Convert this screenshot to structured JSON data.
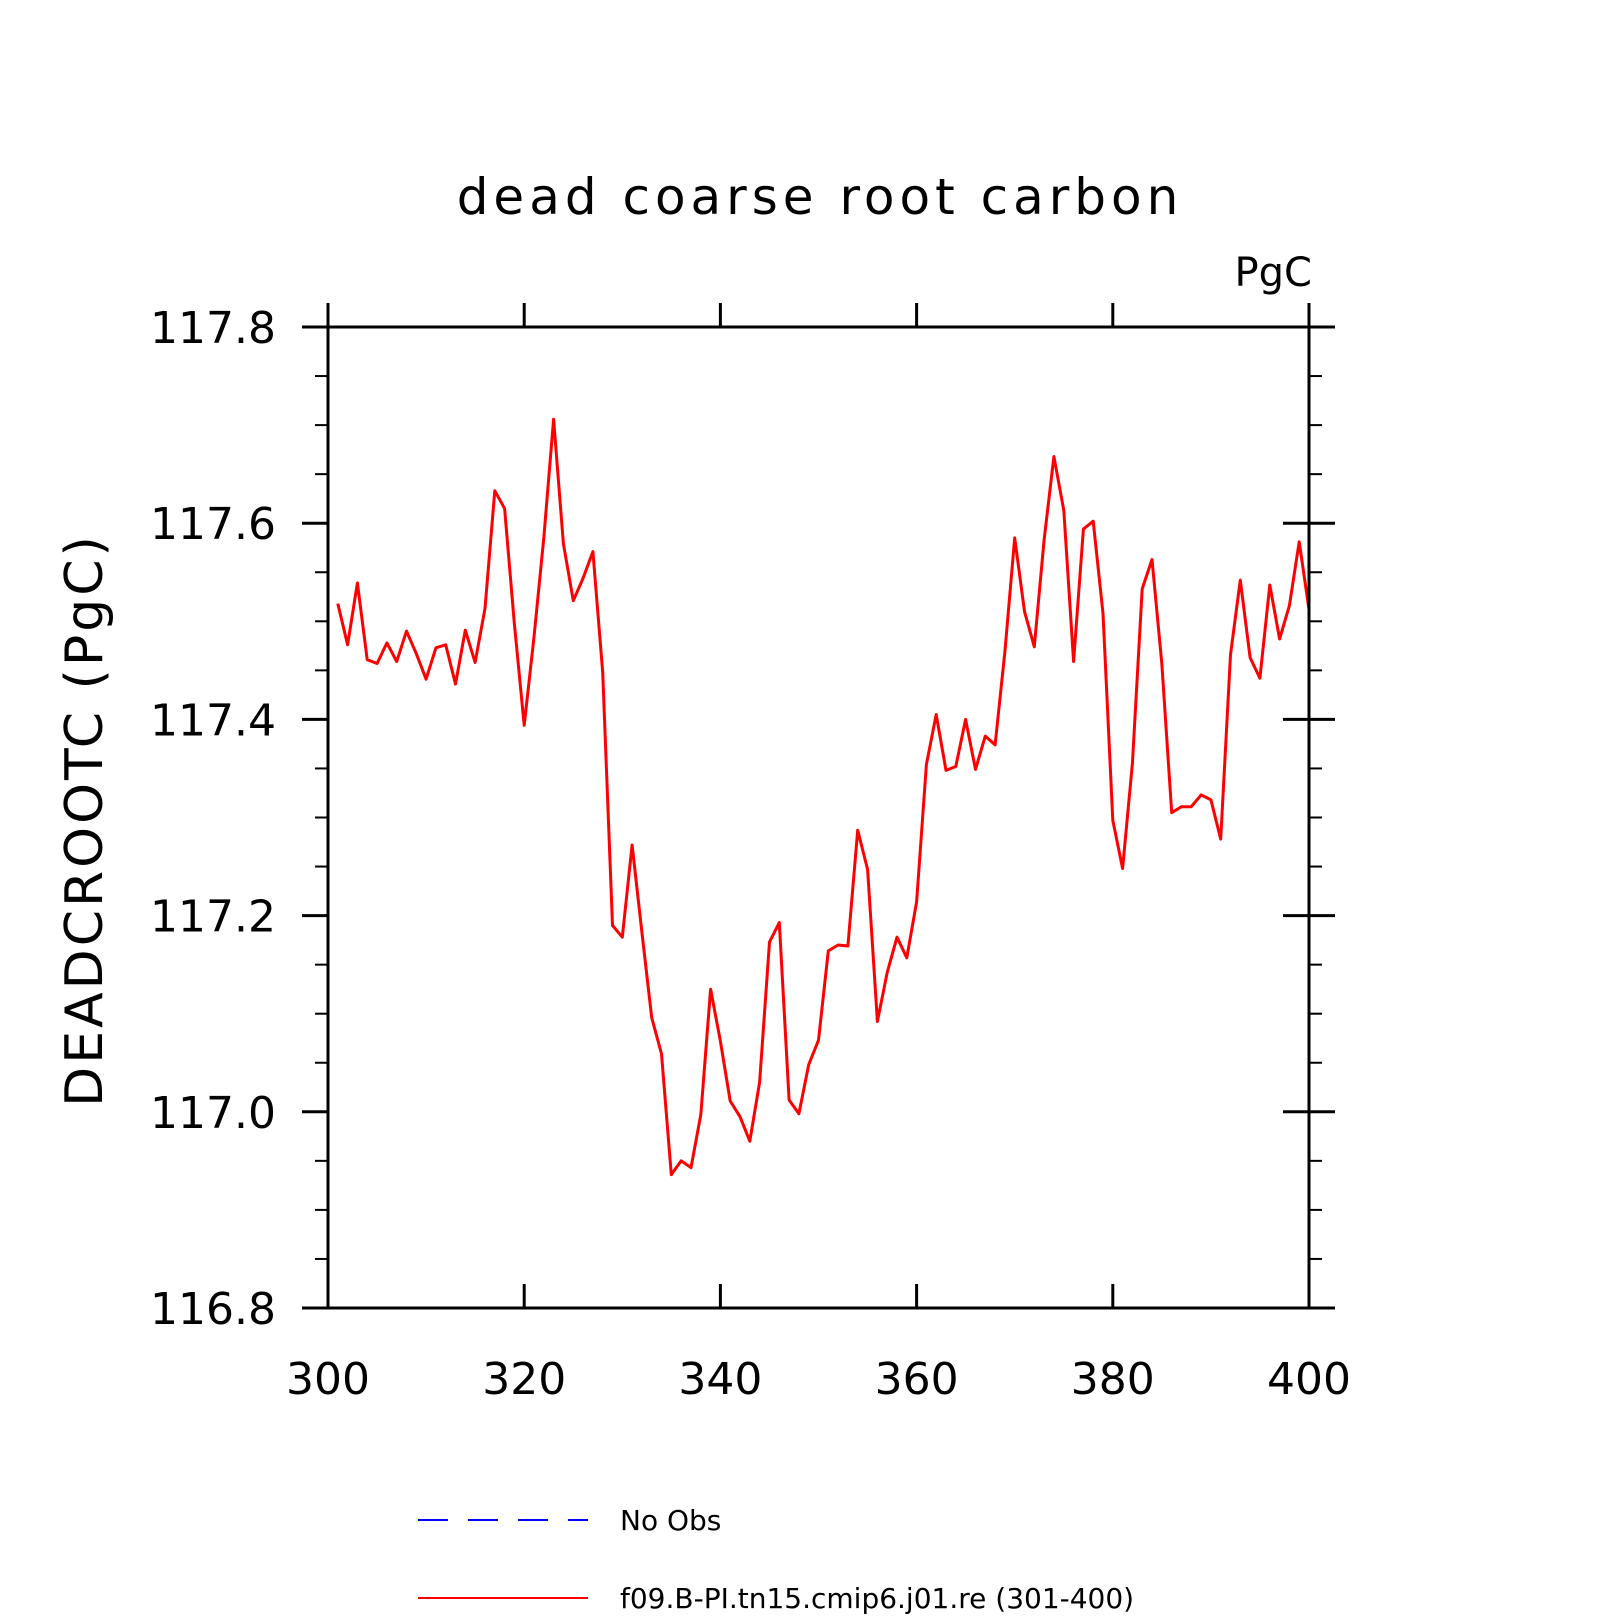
{
  "chart_data": {
    "type": "line",
    "title": "dead coarse root carbon",
    "units": "PgC",
    "xlabel": "",
    "ylabel": "DEADCROOTC  (PgC)",
    "xlim": [
      300,
      400
    ],
    "ylim": [
      116.8,
      117.8
    ],
    "x_ticks": [
      300,
      320,
      340,
      360,
      380,
      400
    ],
    "x_tick_labels": [
      "300",
      "320",
      "340",
      "360",
      "380",
      "400"
    ],
    "y_ticks": [
      116.8,
      117.0,
      117.2,
      117.4,
      117.6,
      117.8
    ],
    "y_tick_labels": [
      "116.8",
      "117.0",
      "117.2",
      "117.4",
      "117.6",
      "117.8"
    ],
    "grid": false,
    "legend_position": "bottom",
    "legend": [
      {
        "label": "No Obs",
        "color": "#0000ff",
        "style": "dashed"
      },
      {
        "label": "f09.B-PI.tn15.cmip6.j01.re (301-400)",
        "color": "#ff0000",
        "style": "solid"
      }
    ],
    "series": [
      {
        "name": "f09.B-PI.tn15.cmip6.j01.re (301-400)",
        "color": "#ff0000",
        "x": [
          301,
          302,
          303,
          304,
          305,
          306,
          307,
          308,
          309,
          310,
          311,
          312,
          313,
          314,
          315,
          316,
          317,
          318,
          319,
          320,
          321,
          322,
          323,
          324,
          325,
          326,
          327,
          328,
          329,
          330,
          331,
          332,
          333,
          334,
          335,
          336,
          337,
          338,
          339,
          340,
          341,
          342,
          343,
          344,
          345,
          346,
          347,
          348,
          349,
          350,
          351,
          352,
          353,
          354,
          355,
          356,
          357,
          358,
          359,
          360,
          361,
          362,
          363,
          364,
          365,
          366,
          367,
          368,
          369,
          370,
          371,
          372,
          373,
          374,
          375,
          376,
          377,
          378,
          379,
          380,
          381,
          382,
          383,
          384,
          385,
          386,
          387,
          388,
          389,
          390,
          391,
          392,
          393,
          394,
          395,
          396,
          397,
          398,
          399,
          400
        ],
        "values": [
          117.518,
          117.476,
          117.539,
          117.461,
          117.457,
          117.478,
          117.459,
          117.49,
          117.467,
          117.441,
          117.473,
          117.476,
          117.436,
          117.491,
          117.458,
          117.513,
          117.633,
          117.615,
          117.497,
          117.394,
          117.484,
          117.585,
          117.706,
          117.579,
          117.521,
          117.544,
          117.571,
          117.448,
          117.19,
          117.178,
          117.272,
          117.183,
          117.096,
          117.059,
          116.936,
          116.95,
          116.943,
          116.997,
          117.125,
          117.072,
          117.011,
          116.995,
          116.97,
          117.03,
          117.173,
          117.193,
          117.012,
          116.998,
          117.048,
          117.073,
          117.164,
          117.17,
          117.169,
          117.287,
          117.247,
          117.092,
          117.142,
          117.178,
          117.157,
          117.214,
          117.354,
          117.405,
          117.348,
          117.352,
          117.4,
          117.349,
          117.383,
          117.374,
          117.469,
          117.585,
          117.51,
          117.474,
          117.583,
          117.668,
          117.613,
          117.459,
          117.594,
          117.602,
          117.508,
          117.297,
          117.248,
          117.355,
          117.533,
          117.563,
          117.457,
          117.305,
          117.311,
          117.311,
          117.323,
          117.318,
          117.278,
          117.466,
          117.542,
          117.463,
          117.442,
          117.537,
          117.482,
          117.516,
          117.581,
          117.512
        ]
      }
    ]
  }
}
